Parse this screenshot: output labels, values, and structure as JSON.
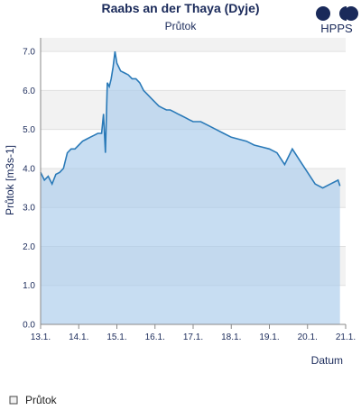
{
  "chart_data": {
    "type": "line",
    "title": "Raabs an der Thaya (Dyje)",
    "subtitle": "Průtok",
    "logo": "HPPS",
    "y_label": "Průtok [m3s-1]",
    "x_label": "Datum",
    "x": [
      13.0,
      13.1,
      13.2,
      13.3,
      13.4,
      13.5,
      13.6,
      13.7,
      13.8,
      13.9,
      14.0,
      14.1,
      14.2,
      14.3,
      14.4,
      14.5,
      14.6,
      14.65,
      14.7,
      14.75,
      14.8,
      14.85,
      14.9,
      14.95,
      15.0,
      15.1,
      15.2,
      15.3,
      15.4,
      15.5,
      15.6,
      15.7,
      15.8,
      15.9,
      16.0,
      16.1,
      16.2,
      16.3,
      16.4,
      16.5,
      16.6,
      16.7,
      16.8,
      16.9,
      17.0,
      17.2,
      17.4,
      17.6,
      17.8,
      18.0,
      18.2,
      18.4,
      18.6,
      18.8,
      19.0,
      19.2,
      19.4,
      19.6,
      19.8,
      20.0,
      20.2,
      20.4,
      20.6,
      20.8,
      20.85
    ],
    "series": [
      {
        "name": "Průtok",
        "color": "#2a7ab8",
        "fill": "#a9cbeb",
        "values": [
          3.9,
          3.7,
          3.8,
          3.6,
          3.85,
          3.9,
          4.0,
          4.4,
          4.5,
          4.5,
          4.6,
          4.7,
          4.75,
          4.8,
          4.85,
          4.9,
          4.9,
          5.4,
          4.4,
          6.2,
          6.1,
          6.3,
          6.6,
          7.0,
          6.7,
          6.5,
          6.45,
          6.4,
          6.3,
          6.3,
          6.2,
          6.0,
          5.9,
          5.8,
          5.7,
          5.6,
          5.55,
          5.5,
          5.5,
          5.45,
          5.4,
          5.35,
          5.3,
          5.25,
          5.2,
          5.2,
          5.1,
          5.0,
          4.9,
          4.8,
          4.75,
          4.7,
          4.6,
          4.55,
          4.5,
          4.4,
          4.1,
          4.5,
          4.2,
          3.9,
          3.6,
          3.5,
          3.6,
          3.7,
          3.55
        ]
      }
    ],
    "xlim": [
      13,
      21
    ],
    "xticks": [
      {
        "value": 13,
        "label": "13.1."
      },
      {
        "value": 14,
        "label": "14.1."
      },
      {
        "value": 15,
        "label": "15.1."
      },
      {
        "value": 16,
        "label": "16.1."
      },
      {
        "value": 17,
        "label": "17.1."
      },
      {
        "value": 18,
        "label": "18.1."
      },
      {
        "value": 19,
        "label": "19.1."
      },
      {
        "value": 20,
        "label": "20.1."
      },
      {
        "value": 21,
        "label": "21.1."
      }
    ],
    "ylim": [
      0,
      7.35
    ],
    "yticks": [
      {
        "value": 0,
        "label": "0.0"
      },
      {
        "value": 1,
        "label": "1.0"
      },
      {
        "value": 2,
        "label": "2.0"
      },
      {
        "value": 3,
        "label": "3.0"
      },
      {
        "value": 4,
        "label": "4.0"
      },
      {
        "value": 5,
        "label": "5.0"
      },
      {
        "value": 6,
        "label": "6.0"
      },
      {
        "value": 7,
        "label": "7.0"
      }
    ],
    "grid": true,
    "legend": "bottom-left"
  }
}
